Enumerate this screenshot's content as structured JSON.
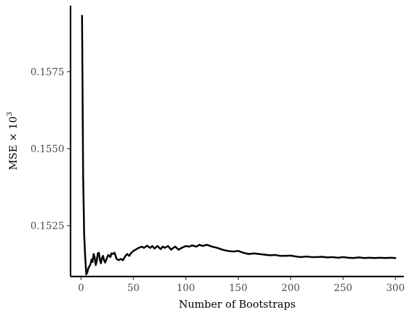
{
  "chart_data": {
    "type": "line",
    "xlabel": "Number of Bootstraps",
    "ylabel_main": "MSE × 10",
    "ylabel_sup": "3",
    "xlim": [
      -10,
      308
    ],
    "ylim": [
      0.15085,
      0.15965
    ],
    "x_ticks": [
      0,
      50,
      100,
      150,
      200,
      250,
      300
    ],
    "x_tick_labels": [
      "0",
      "50",
      "100",
      "150",
      "200",
      "250",
      "300"
    ],
    "y_ticks": [
      0.1525,
      0.155,
      0.1575
    ],
    "y_tick_labels": [
      "0.1525",
      "0.1550",
      "0.1575"
    ],
    "grid": false,
    "series": [
      {
        "color": "#000000",
        "points": [
          [
            1,
            0.15932
          ],
          [
            2,
            0.15418
          ],
          [
            3,
            0.15222
          ],
          [
            4,
            0.15148
          ],
          [
            5,
            0.15092
          ],
          [
            6,
            0.15098
          ],
          [
            7,
            0.15112
          ],
          [
            8,
            0.15118
          ],
          [
            9,
            0.15125
          ],
          [
            10,
            0.1514
          ],
          [
            11,
            0.15132
          ],
          [
            12,
            0.15158
          ],
          [
            13,
            0.15148
          ],
          [
            14,
            0.15122
          ],
          [
            15,
            0.15135
          ],
          [
            16,
            0.1516
          ],
          [
            17,
            0.15162
          ],
          [
            18,
            0.1514
          ],
          [
            19,
            0.15128
          ],
          [
            20,
            0.15145
          ],
          [
            21,
            0.15152
          ],
          [
            22,
            0.15138
          ],
          [
            23,
            0.1513
          ],
          [
            24,
            0.15138
          ],
          [
            25,
            0.15148
          ],
          [
            26,
            0.15155
          ],
          [
            27,
            0.15152
          ],
          [
            28,
            0.15148
          ],
          [
            29,
            0.1516
          ],
          [
            30,
            0.15158
          ],
          [
            32,
            0.15162
          ],
          [
            34,
            0.15142
          ],
          [
            36,
            0.15138
          ],
          [
            38,
            0.15142
          ],
          [
            40,
            0.15138
          ],
          [
            42,
            0.1515
          ],
          [
            44,
            0.15158
          ],
          [
            46,
            0.15152
          ],
          [
            48,
            0.15162
          ],
          [
            50,
            0.15168
          ],
          [
            52,
            0.15172
          ],
          [
            55,
            0.15178
          ],
          [
            58,
            0.15182
          ],
          [
            60,
            0.15178
          ],
          [
            63,
            0.15185
          ],
          [
            66,
            0.15178
          ],
          [
            68,
            0.15184
          ],
          [
            70,
            0.15176
          ],
          [
            73,
            0.15184
          ],
          [
            76,
            0.15174
          ],
          [
            78,
            0.15182
          ],
          [
            80,
            0.15178
          ],
          [
            83,
            0.15184
          ],
          [
            86,
            0.15172
          ],
          [
            88,
            0.15178
          ],
          [
            90,
            0.15182
          ],
          [
            93,
            0.15172
          ],
          [
            96,
            0.15178
          ],
          [
            100,
            0.15184
          ],
          [
            103,
            0.15182
          ],
          [
            106,
            0.15186
          ],
          [
            110,
            0.15182
          ],
          [
            113,
            0.15188
          ],
          [
            116,
            0.15184
          ],
          [
            120,
            0.15188
          ],
          [
            125,
            0.15182
          ],
          [
            130,
            0.15178
          ],
          [
            135,
            0.15172
          ],
          [
            140,
            0.15168
          ],
          [
            145,
            0.15166
          ],
          [
            150,
            0.15168
          ],
          [
            155,
            0.15162
          ],
          [
            160,
            0.15158
          ],
          [
            165,
            0.1516
          ],
          [
            170,
            0.15158
          ],
          [
            175,
            0.15156
          ],
          [
            180,
            0.15154
          ],
          [
            185,
            0.15155
          ],
          [
            190,
            0.15152
          ],
          [
            195,
            0.15152
          ],
          [
            200,
            0.15153
          ],
          [
            205,
            0.1515
          ],
          [
            210,
            0.15148
          ],
          [
            215,
            0.1515
          ],
          [
            220,
            0.15148
          ],
          [
            225,
            0.15148
          ],
          [
            230,
            0.15149
          ],
          [
            235,
            0.15147
          ],
          [
            240,
            0.15148
          ],
          [
            245,
            0.15146
          ],
          [
            250,
            0.15148
          ],
          [
            255,
            0.15146
          ],
          [
            260,
            0.15145
          ],
          [
            265,
            0.15147
          ],
          [
            270,
            0.15145
          ],
          [
            275,
            0.15146
          ],
          [
            280,
            0.15145
          ],
          [
            285,
            0.15146
          ],
          [
            290,
            0.15145
          ],
          [
            295,
            0.15146
          ],
          [
            300,
            0.15145
          ]
        ]
      }
    ]
  }
}
